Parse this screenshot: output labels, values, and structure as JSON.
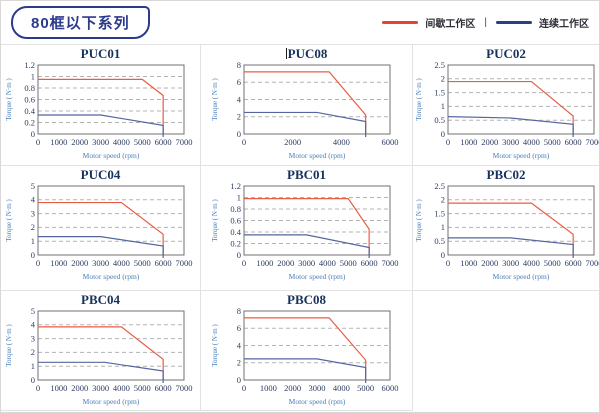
{
  "page": {
    "title": "80框以下系列"
  },
  "legend": {
    "separator": "|",
    "items": [
      {
        "label": "间歇工作区",
        "color": "#e8432c"
      },
      {
        "label": "连续工作区",
        "color": "#2b3f87"
      }
    ]
  },
  "colors": {
    "legend_red": "#e8432c",
    "legend_blue": "#2b3f87",
    "line_red": "#e95c44",
    "line_blue": "#55659f",
    "plot_border": "#707070",
    "gridline": "#b3b3b3",
    "tick_text": "#2d3c63",
    "title_text": "#16325c",
    "axis_label_text": "#4a7ebb",
    "cell_border": "#e2e2e2"
  },
  "chart_data": [
    {
      "type": "line",
      "title": "PUC01",
      "xlabel": "Motor speed (rpm)",
      "ylabel": "Torque ( N·m )",
      "xlim": [
        0,
        7000
      ],
      "ylim": [
        0,
        1.2
      ],
      "xticks": [
        0,
        1000,
        2000,
        3000,
        4000,
        5000,
        6000,
        7000
      ],
      "yticks": [
        0,
        0.2,
        0.4,
        0.6,
        0.8,
        1,
        1.2
      ],
      "series": [
        {
          "name": "间歇工作区",
          "color_key": "line_red",
          "points": [
            [
              0,
              0.95
            ],
            [
              5000,
              0.95
            ],
            [
              6000,
              0.67
            ],
            [
              6000,
              0
            ]
          ]
        },
        {
          "name": "连续工作区",
          "color_key": "line_blue",
          "points": [
            [
              0,
              0.33
            ],
            [
              3000,
              0.33
            ],
            [
              6000,
              0.15
            ],
            [
              6000,
              0
            ]
          ]
        }
      ]
    },
    {
      "type": "line",
      "title": "PUC08",
      "xlabel": "Motor speed (rpm)",
      "ylabel": "Torque ( N·m )",
      "xlim": [
        0,
        6000
      ],
      "ylim": [
        0,
        8
      ],
      "xticks": [
        0,
        2000,
        4000,
        6000
      ],
      "yticks": [
        0,
        2,
        4,
        6,
        8
      ],
      "series": [
        {
          "name": "间歇工作区",
          "color_key": "line_red",
          "points": [
            [
              0,
              7.2
            ],
            [
              3500,
              7.2
            ],
            [
              5000,
              2.2
            ],
            [
              5000,
              0
            ]
          ]
        },
        {
          "name": "连续工作区",
          "color_key": "line_blue",
          "points": [
            [
              0,
              2.5
            ],
            [
              3000,
              2.5
            ],
            [
              5000,
              1.45
            ],
            [
              5000,
              0
            ]
          ]
        }
      ]
    },
    {
      "type": "line",
      "title": "PUC02",
      "xlabel": "Motor speed (rpm)",
      "ylabel": "Torque ( N·m )",
      "xlim": [
        0,
        7000
      ],
      "ylim": [
        0,
        2.5
      ],
      "xticks": [
        0,
        1000,
        2000,
        3000,
        4000,
        5000,
        6000,
        7000
      ],
      "yticks": [
        0,
        0.5,
        1,
        1.5,
        2,
        2.5
      ],
      "series": [
        {
          "name": "间歇工作区",
          "color_key": "line_red",
          "points": [
            [
              0,
              1.9
            ],
            [
              4000,
              1.9
            ],
            [
              6000,
              0.65
            ],
            [
              6000,
              0
            ]
          ]
        },
        {
          "name": "连续工作区",
          "color_key": "line_blue",
          "points": [
            [
              0,
              0.63
            ],
            [
              3000,
              0.58
            ],
            [
              6000,
              0.35
            ],
            [
              6000,
              0
            ]
          ]
        }
      ]
    },
    {
      "type": "line",
      "title": "PUC04",
      "xlabel": "Motor speed (rpm)",
      "ylabel": "Torque ( N·m )",
      "xlim": [
        0,
        7000
      ],
      "ylim": [
        0,
        5
      ],
      "xticks": [
        0,
        1000,
        2000,
        3000,
        4000,
        5000,
        6000,
        7000
      ],
      "yticks": [
        0,
        1,
        2,
        3,
        4,
        5
      ],
      "series": [
        {
          "name": "间歇工作区",
          "color_key": "line_red",
          "points": [
            [
              0,
              3.8
            ],
            [
              4000,
              3.8
            ],
            [
              6000,
              1.5
            ],
            [
              6000,
              0
            ]
          ]
        },
        {
          "name": "连续工作区",
          "color_key": "line_blue",
          "points": [
            [
              0,
              1.33
            ],
            [
              3000,
              1.33
            ],
            [
              6000,
              0.65
            ],
            [
              6000,
              0
            ]
          ]
        }
      ]
    },
    {
      "type": "line",
      "title": "PBC01",
      "xlabel": "Motor speed (rpm)",
      "ylabel": "Torque ( N·m )",
      "xlim": [
        0,
        7000
      ],
      "ylim": [
        0,
        1.2
      ],
      "xticks": [
        0,
        1000,
        2000,
        3000,
        4000,
        5000,
        6000,
        7000
      ],
      "yticks": [
        0,
        0.2,
        0.4,
        0.6,
        0.8,
        1,
        1.2
      ],
      "series": [
        {
          "name": "间歇工作区",
          "color_key": "line_red",
          "points": [
            [
              0,
              0.98
            ],
            [
              5000,
              0.98
            ],
            [
              6000,
              0.45
            ],
            [
              6000,
              0
            ]
          ]
        },
        {
          "name": "连续工作区",
          "color_key": "line_blue",
          "points": [
            [
              0,
              0.35
            ],
            [
              3000,
              0.35
            ],
            [
              6000,
              0.13
            ],
            [
              6000,
              0
            ]
          ]
        }
      ]
    },
    {
      "type": "line",
      "title": "PBC02",
      "xlabel": "Motor speed (rpm)",
      "ylabel": "Torque ( N·m )",
      "xlim": [
        0,
        7000
      ],
      "ylim": [
        0,
        2.5
      ],
      "xticks": [
        0,
        1000,
        2000,
        3000,
        4000,
        5000,
        6000,
        7000
      ],
      "yticks": [
        0,
        0.5,
        1,
        1.5,
        2,
        2.5
      ],
      "series": [
        {
          "name": "间歇工作区",
          "color_key": "line_red",
          "points": [
            [
              0,
              1.88
            ],
            [
              4000,
              1.88
            ],
            [
              6000,
              0.75
            ],
            [
              6000,
              0
            ]
          ]
        },
        {
          "name": "连续工作区",
          "color_key": "line_blue",
          "points": [
            [
              0,
              0.62
            ],
            [
              3000,
              0.62
            ],
            [
              6000,
              0.38
            ],
            [
              6000,
              0
            ]
          ]
        }
      ]
    },
    {
      "type": "line",
      "title": "PBC04",
      "xlabel": "Motor speed (rpm)",
      "ylabel": "Torque ( N·m )",
      "xlim": [
        0,
        7000
      ],
      "ylim": [
        0,
        5
      ],
      "xticks": [
        0,
        1000,
        2000,
        3000,
        4000,
        5000,
        6000,
        7000
      ],
      "yticks": [
        0,
        1,
        2,
        3,
        4,
        5
      ],
      "series": [
        {
          "name": "间歇工作区",
          "color_key": "line_red",
          "points": [
            [
              0,
              3.85
            ],
            [
              4000,
              3.85
            ],
            [
              6000,
              1.5
            ],
            [
              6000,
              0
            ]
          ]
        },
        {
          "name": "连续工作区",
          "color_key": "line_blue",
          "points": [
            [
              0,
              1.28
            ],
            [
              3200,
              1.28
            ],
            [
              6000,
              0.65
            ],
            [
              6000,
              0
            ]
          ]
        }
      ]
    },
    {
      "type": "line",
      "title": "PBC08",
      "xlabel": "Motor speed (rpm)",
      "ylabel": "Torque ( N·m )",
      "xlim": [
        0,
        6000
      ],
      "ylim": [
        0,
        8
      ],
      "xticks": [
        0,
        1000,
        2000,
        3000,
        4000,
        5000,
        6000
      ],
      "yticks": [
        0,
        2,
        4,
        6,
        8
      ],
      "series": [
        {
          "name": "间歇工作区",
          "color_key": "line_red",
          "points": [
            [
              0,
              7.2
            ],
            [
              3500,
              7.2
            ],
            [
              5000,
              2.3
            ],
            [
              5000,
              0
            ]
          ]
        },
        {
          "name": "连续工作区",
          "color_key": "line_blue",
          "points": [
            [
              0,
              2.45
            ],
            [
              3000,
              2.45
            ],
            [
              5000,
              1.45
            ],
            [
              5000,
              0
            ]
          ]
        }
      ]
    }
  ]
}
